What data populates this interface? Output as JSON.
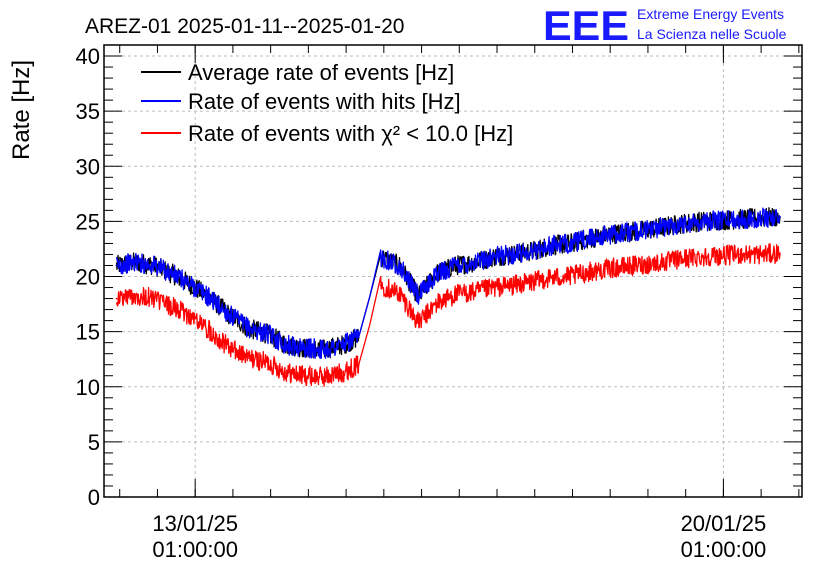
{
  "header": {
    "title": "AREZ-01 2025-01-11--2025-01-20",
    "logo_text": "EEE",
    "logo_line1": "Extreme Energy Events",
    "logo_line2": "La Scienza nelle Scuole"
  },
  "colors": {
    "black_series": "#000000",
    "blue_series": "#0000ff",
    "red_series": "#ff0000",
    "logo": "#1a1aff",
    "grid": "#bdbdbd"
  },
  "chart_data": {
    "type": "line",
    "title": "AREZ-01 2025-01-11--2025-01-20",
    "xlabel": "",
    "ylabel": "Rate [Hz]",
    "ylim": [
      0,
      41
    ],
    "yticks": [
      0,
      5,
      10,
      15,
      20,
      25,
      30,
      35,
      40
    ],
    "x_axis": "date",
    "xlim": [
      "2025-01-11 20:00",
      "2025-01-21 02:00"
    ],
    "xticks": [
      {
        "x": "2025-01-13 01:00",
        "label_date": "13/01/25",
        "label_time": "01:00:00"
      },
      {
        "x": "2025-01-20 01:00",
        "label_date": "20/01/25",
        "label_time": "01:00:00"
      }
    ],
    "grid": true,
    "legend": "top-left",
    "x": [
      "2025-01-12 00:00",
      "2025-01-12 06:00",
      "2025-01-12 12:00",
      "2025-01-12 18:00",
      "2025-01-13 00:00",
      "2025-01-13 06:00",
      "2025-01-13 12:00",
      "2025-01-13 18:00",
      "2025-01-14 00:00",
      "2025-01-14 06:00",
      "2025-01-14 12:00",
      "2025-01-14 18:00",
      "2025-01-15 00:00",
      "2025-01-15 05:00",
      "2025-01-15 12:00",
      "2025-01-15 18:00",
      "2025-01-16 00:00",
      "2025-01-16 06:00",
      "2025-01-16 12:00",
      "2025-01-16 18:00",
      "2025-01-17 00:00",
      "2025-01-17 06:00",
      "2025-01-17 12:00",
      "2025-01-17 18:00",
      "2025-01-18 00:00",
      "2025-01-18 06:00",
      "2025-01-18 12:00",
      "2025-01-18 18:00",
      "2025-01-19 00:00",
      "2025-01-19 06:00",
      "2025-01-19 12:00",
      "2025-01-19 18:00",
      "2025-01-20 00:00",
      "2025-01-20 06:00",
      "2025-01-20 12:00",
      "2025-01-20 19:00"
    ],
    "series": [
      {
        "name": "Average rate of events [Hz]",
        "color": "#000000",
        "values": [
          21.0,
          21.3,
          21.0,
          20.2,
          19.2,
          18.0,
          16.5,
          15.3,
          14.8,
          13.8,
          13.5,
          13.4,
          13.8,
          14.5,
          21.8,
          21.0,
          18.2,
          20.3,
          21.0,
          21.3,
          21.8,
          22.0,
          22.3,
          22.8,
          23.0,
          23.4,
          23.8,
          24.0,
          24.2,
          24.5,
          24.8,
          25.0,
          25.1,
          25.2,
          25.3,
          25.4
        ]
      },
      {
        "name": "Rate of events with hits [Hz]",
        "color": "#0000ff",
        "values": [
          21.0,
          21.3,
          21.0,
          20.2,
          19.2,
          18.0,
          16.5,
          15.3,
          14.8,
          13.8,
          13.5,
          13.4,
          13.8,
          14.5,
          21.8,
          21.0,
          18.2,
          20.3,
          21.0,
          21.3,
          21.8,
          22.0,
          22.3,
          22.8,
          23.0,
          23.4,
          23.8,
          24.0,
          24.2,
          24.5,
          24.8,
          25.0,
          25.1,
          25.2,
          25.3,
          25.4
        ]
      },
      {
        "name": "Rate of events with χ² < 10.0 [Hz]",
        "color": "#ff0000",
        "values": [
          18.0,
          18.3,
          18.0,
          17.2,
          16.3,
          15.0,
          13.5,
          12.6,
          12.2,
          11.3,
          11.0,
          10.9,
          11.3,
          12.0,
          19.2,
          18.5,
          15.8,
          17.6,
          18.4,
          18.6,
          19.0,
          19.2,
          19.5,
          19.9,
          20.0,
          20.4,
          20.7,
          20.9,
          21.1,
          21.3,
          21.6,
          21.8,
          21.9,
          22.0,
          22.0,
          22.1
        ]
      }
    ]
  }
}
